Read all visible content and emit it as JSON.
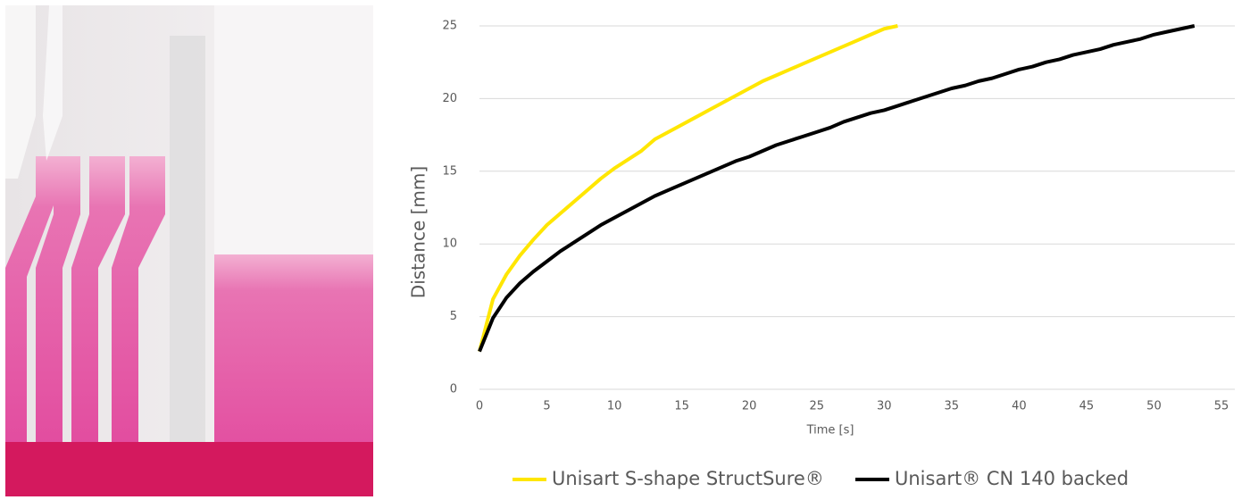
{
  "chart_data": {
    "type": "line",
    "x_label": "Time [s]",
    "y_label": "Distance [mm]",
    "x": [
      0,
      1,
      2,
      3,
      4,
      5,
      6,
      7,
      8,
      9,
      10,
      11,
      12,
      13,
      14,
      15,
      16,
      17,
      18,
      19,
      20,
      21,
      22,
      23,
      24,
      25,
      26,
      27,
      28,
      29,
      30,
      31,
      32,
      33,
      34,
      35,
      36,
      37,
      38,
      39,
      40,
      41,
      42,
      43,
      44,
      45,
      46,
      47,
      48,
      49,
      50,
      51,
      52,
      53
    ],
    "series": [
      {
        "name": "Unisart S-shape StructSure®",
        "color": "#ffe600",
        "values": [
          2.6,
          6.2,
          7.9,
          9.2,
          10.3,
          11.3,
          12.1,
          12.9,
          13.7,
          14.5,
          15.2,
          15.8,
          16.4,
          17.2,
          17.7,
          18.2,
          18.7,
          19.2,
          19.7,
          20.2,
          20.7,
          21.2,
          21.6,
          22.0,
          22.4,
          22.8,
          23.2,
          23.6,
          24.0,
          24.4,
          24.8,
          25.0,
          null,
          null,
          null,
          null,
          null,
          null,
          null,
          null,
          null,
          null,
          null,
          null,
          null,
          null,
          null,
          null,
          null,
          null,
          null,
          null,
          null,
          null
        ]
      },
      {
        "name": "Unisart® CN 140 backed",
        "color": "#000000",
        "values": [
          2.6,
          4.9,
          6.3,
          7.3,
          8.1,
          8.8,
          9.5,
          10.1,
          10.7,
          11.3,
          11.8,
          12.3,
          12.8,
          13.3,
          13.7,
          14.1,
          14.5,
          14.9,
          15.3,
          15.7,
          16.0,
          16.4,
          16.8,
          17.1,
          17.4,
          17.7,
          18.0,
          18.4,
          18.7,
          19.0,
          19.2,
          19.5,
          19.8,
          20.1,
          20.4,
          20.7,
          20.9,
          21.2,
          21.4,
          21.7,
          22.0,
          22.2,
          22.5,
          22.7,
          23.0,
          23.2,
          23.4,
          23.7,
          23.9,
          24.1,
          24.4,
          24.6,
          24.8,
          25.0
        ]
      }
    ],
    "xlim": [
      0,
      55
    ],
    "xticks": [
      0,
      5,
      10,
      15,
      20,
      25,
      30,
      35,
      40,
      45,
      50,
      55
    ],
    "ylim": [
      0,
      25
    ],
    "yticks": [
      0,
      5,
      10,
      15,
      20,
      25
    ],
    "grid": true,
    "legend": "bottom"
  }
}
